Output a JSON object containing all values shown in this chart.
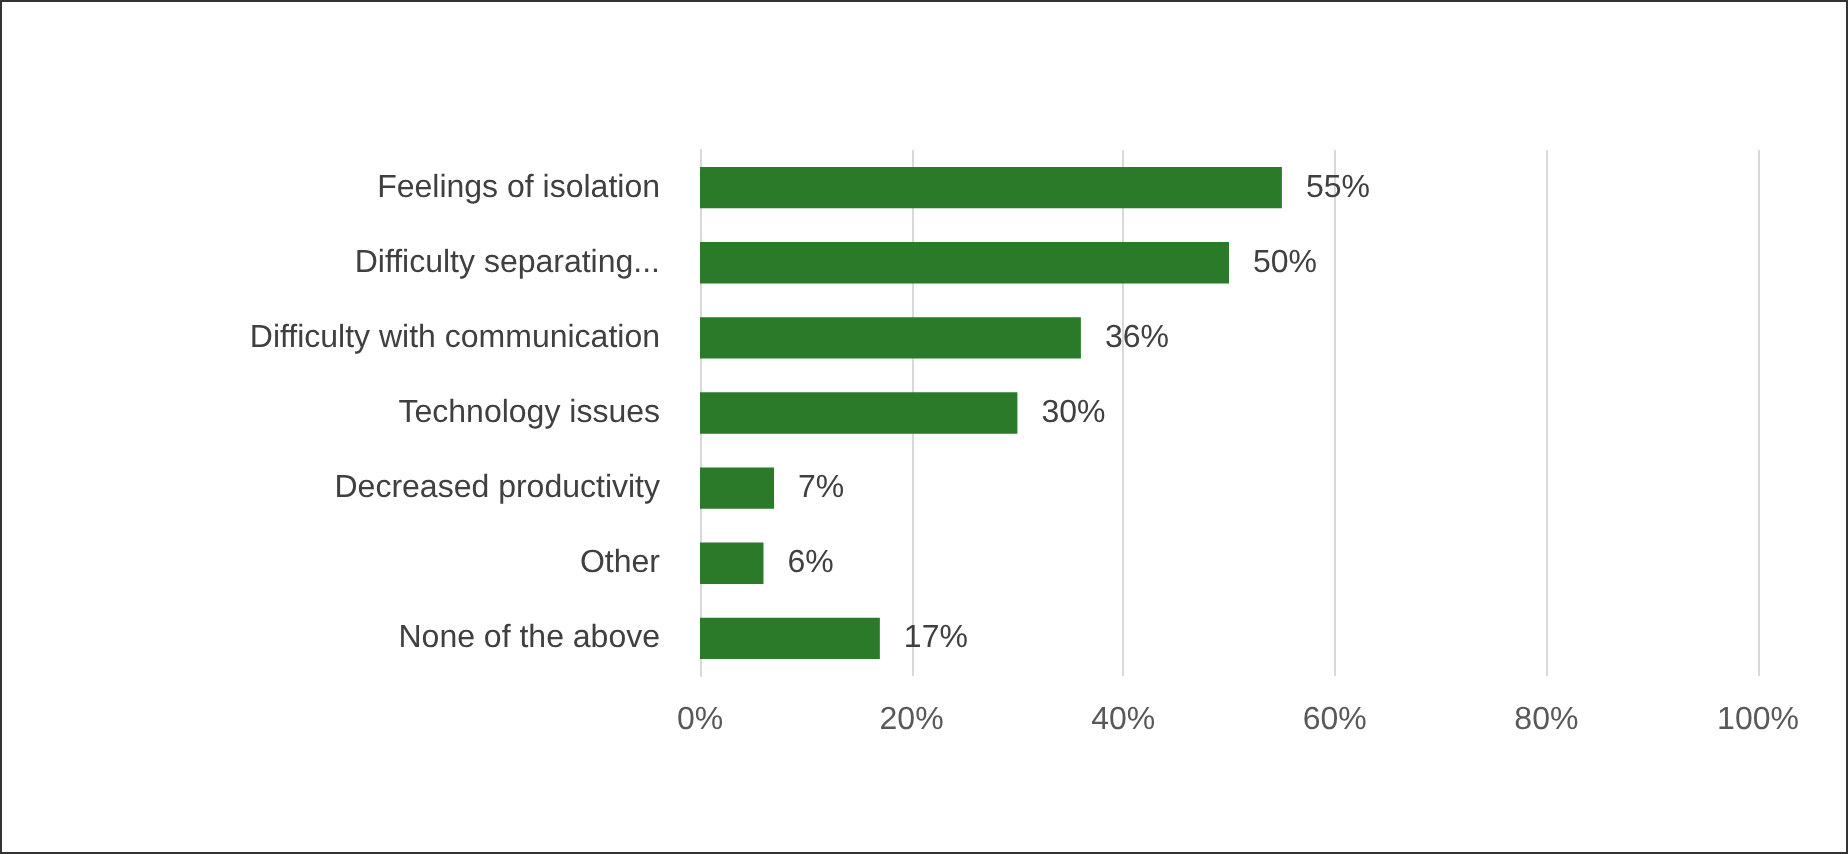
{
  "chart_data": {
    "type": "bar",
    "orientation": "horizontal",
    "categories": [
      "Feelings of isolation",
      "Difficulty separating...",
      "Difficulty with communication",
      "Technology issues",
      "Decreased productivity",
      "Other",
      "None of the above"
    ],
    "values": [
      55,
      50,
      36,
      30,
      7,
      6,
      17
    ],
    "value_labels": [
      "55%",
      "50%",
      "36%",
      "30%",
      "7%",
      "6%",
      "17%"
    ],
    "color": "#2a7a2a",
    "xlim": [
      0,
      100
    ],
    "xticks": [
      {
        "value": 0,
        "label": "0%"
      },
      {
        "value": 20,
        "label": "20%"
      },
      {
        "value": 40,
        "label": "40%"
      },
      {
        "value": 60,
        "label": "60%"
      },
      {
        "value": 80,
        "label": "80%"
      },
      {
        "value": 100,
        "label": "100%"
      }
    ],
    "grid": "x"
  }
}
